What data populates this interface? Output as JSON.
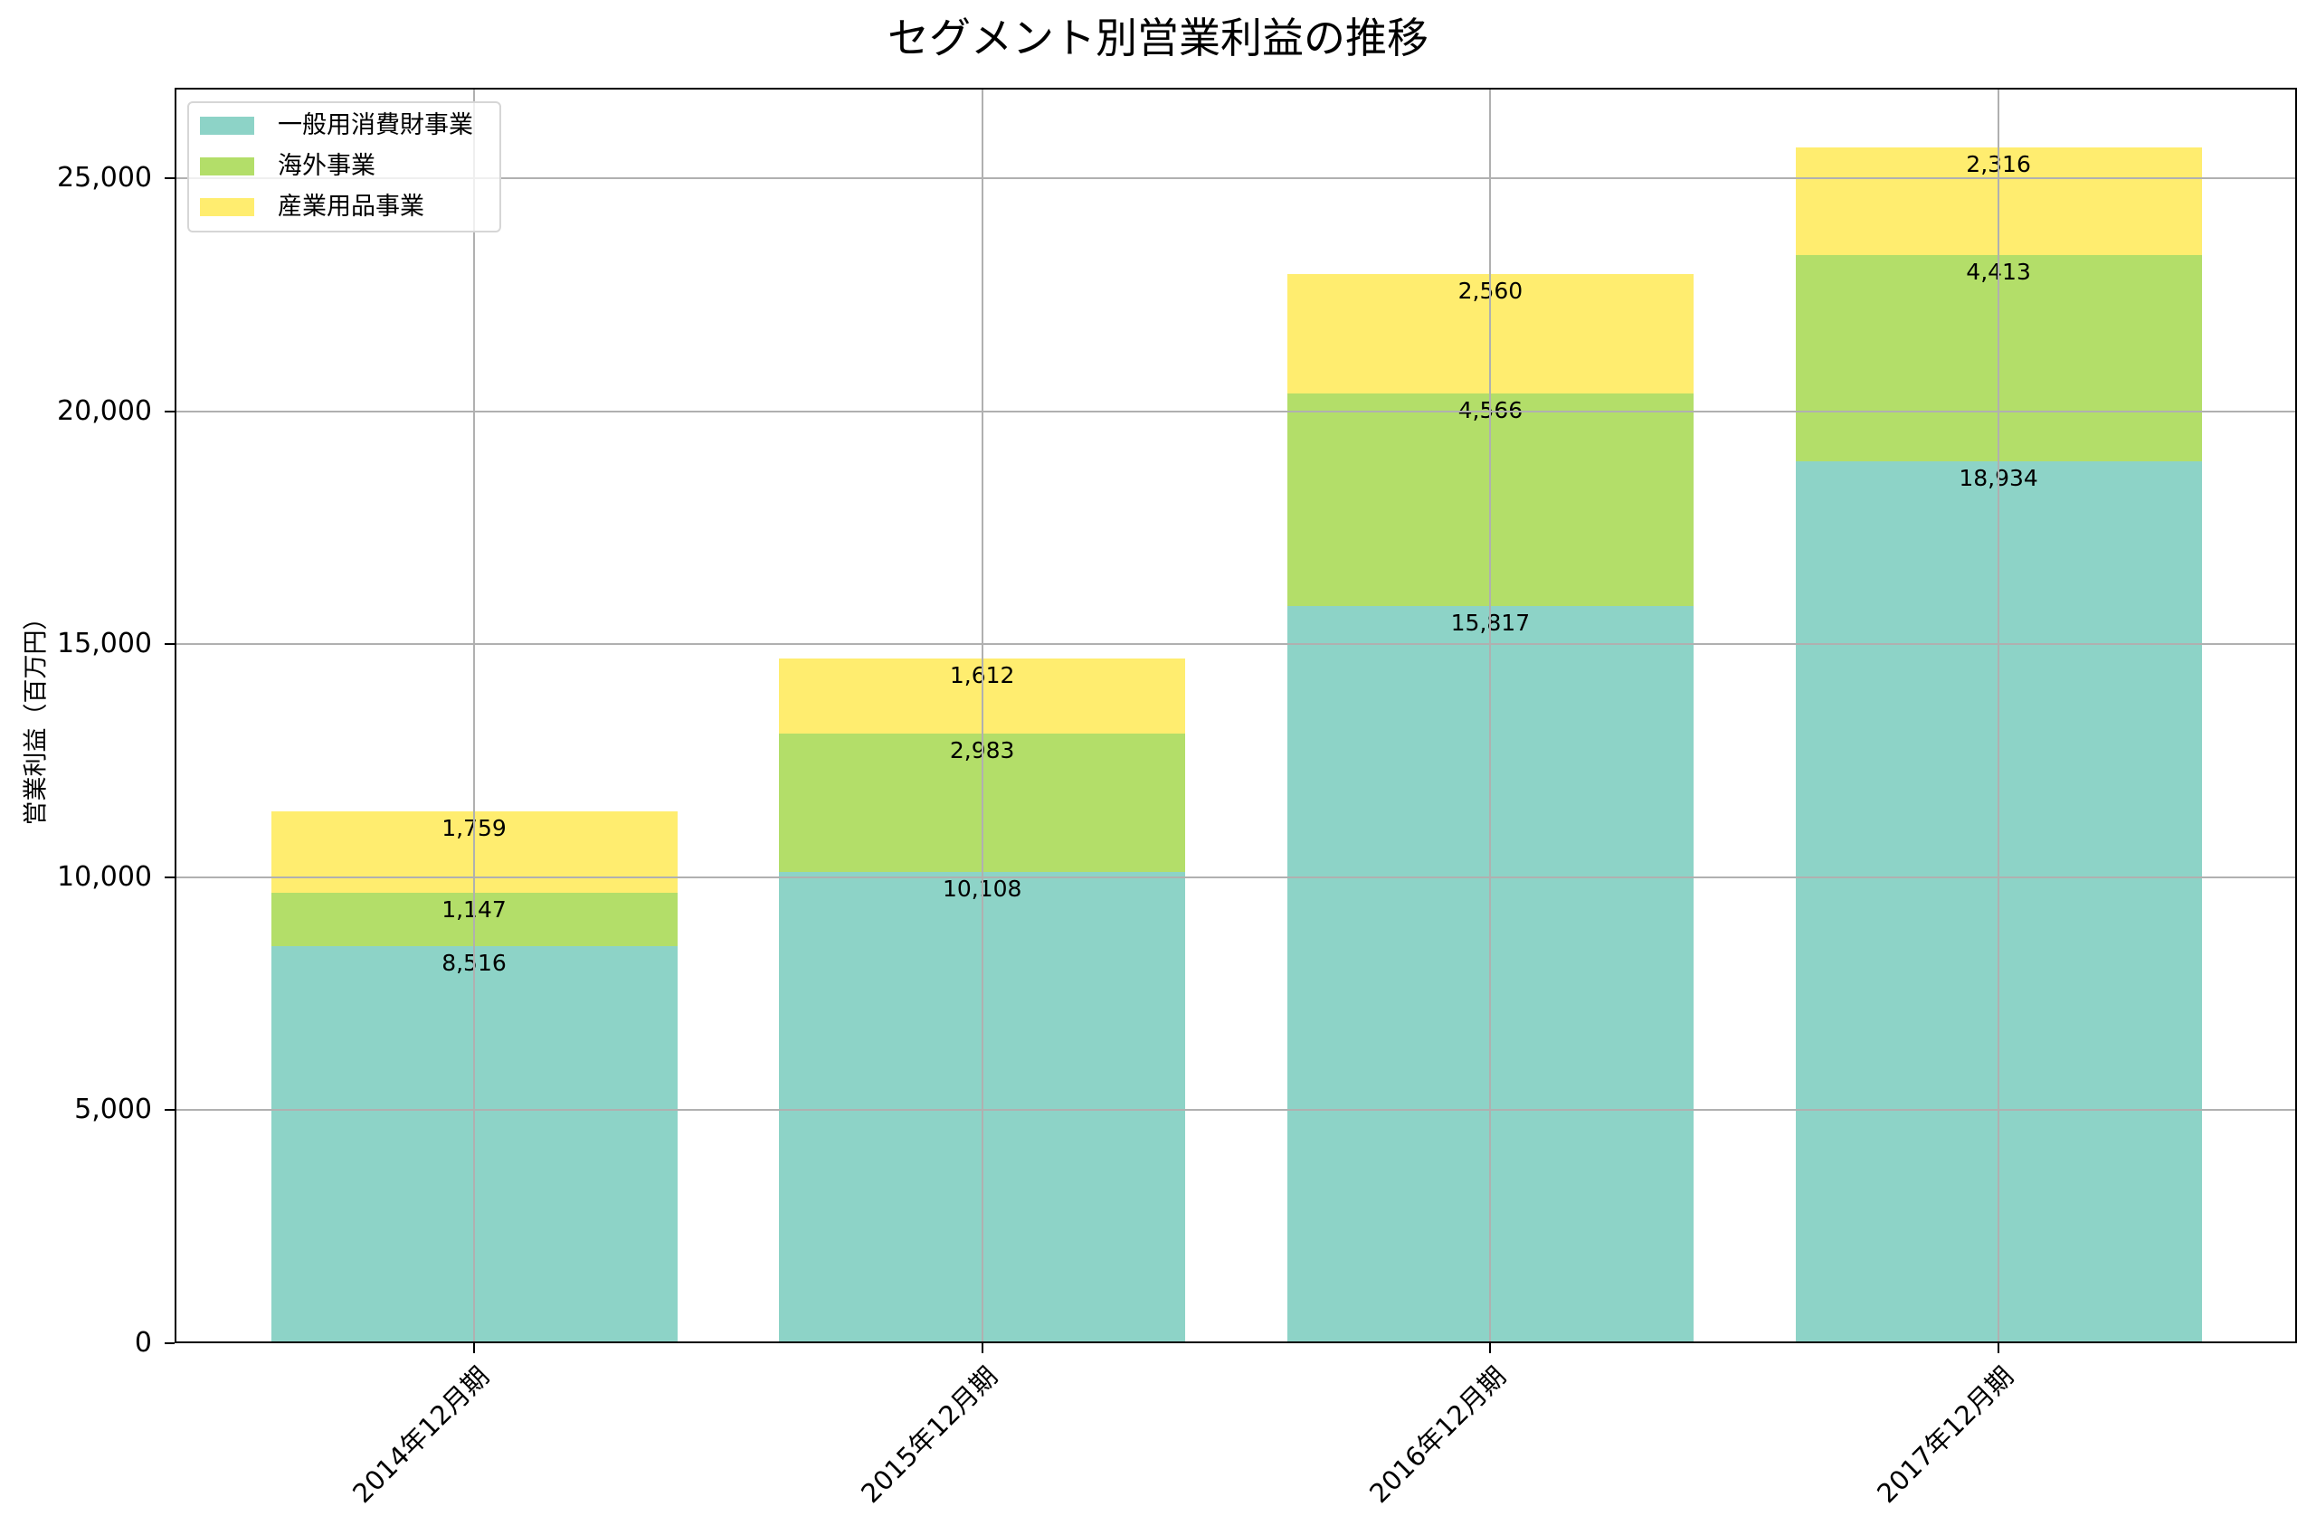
{
  "chart_data": {
    "type": "bar",
    "stacked": true,
    "title": "セグメント別営業利益の推移",
    "xlabel": "",
    "ylabel": "営業利益（百万円）",
    "categories": [
      "2014年12月期",
      "2015年12月期",
      "2016年12月期",
      "2017年12月期"
    ],
    "series": [
      {
        "name": "一般用消費財事業",
        "color": "#8dd3c7",
        "values": [
          8516,
          10108,
          15817,
          18934
        ],
        "labels": [
          "8,516",
          "10,108",
          "15,817",
          "18,934"
        ]
      },
      {
        "name": "海外事業",
        "color": "#b3de69",
        "values": [
          1147,
          2983,
          4566,
          4413
        ],
        "labels": [
          "1,147",
          "2,983",
          "4,566",
          "4,413"
        ]
      },
      {
        "name": "産業用品事業",
        "color": "#ffed6f",
        "values": [
          1759,
          1612,
          2560,
          2316
        ],
        "labels": [
          "1,759",
          "1,612",
          "2,560",
          "2,316"
        ]
      }
    ],
    "ylim": [
      0,
      26946
    ],
    "yticks": [
      0,
      5000,
      10000,
      15000,
      20000,
      25000
    ],
    "ytick_labels": [
      "0",
      "5,000",
      "10,000",
      "15,000",
      "20,000",
      "25,000"
    ],
    "grid": true,
    "legend_position": "upper left"
  },
  "legend": {
    "items": [
      {
        "label": "一般用消費財事業",
        "color": "#8dd3c7"
      },
      {
        "label": "海外事業",
        "color": "#b3de69"
      },
      {
        "label": "産業用品事業",
        "color": "#ffed6f"
      }
    ]
  }
}
